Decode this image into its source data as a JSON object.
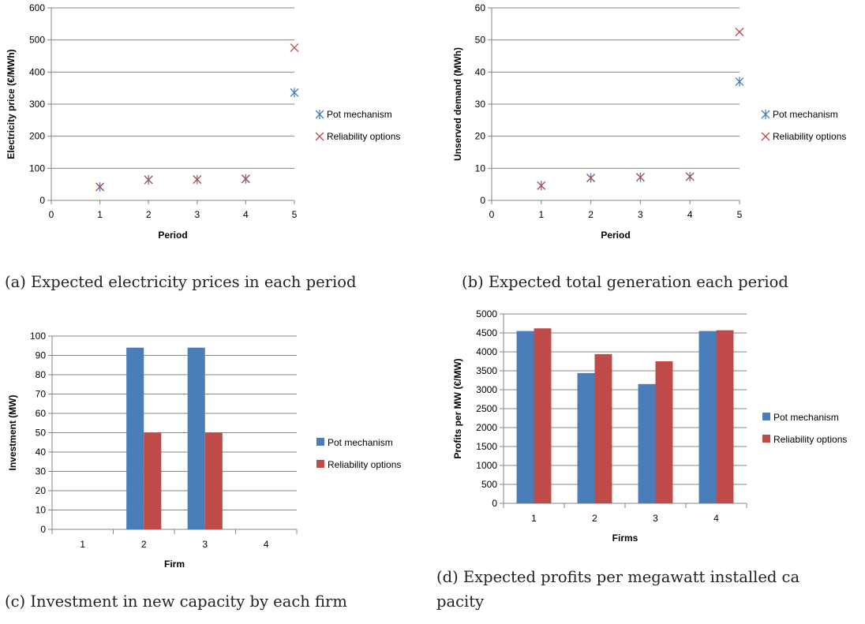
{
  "captions": {
    "a": "(a) Expected electricity prices in each period",
    "b": "(b) Expected total generation each period",
    "c": "(c) Investment in new capacity by each firm",
    "d_line1": "(d) Expected profits per megawatt installed ca",
    "d_line2": "pacity"
  },
  "colors": {
    "pot": "#4a7ebb",
    "ro": "#be4b48",
    "grid": "#868686",
    "axis": "#868686"
  },
  "chart_data": [
    {
      "id": "a",
      "type": "scatter",
      "xlabel": "Period",
      "ylabel": "Electricity price (€/MWh)",
      "xlim": [
        0,
        5
      ],
      "ylim": [
        0,
        600
      ],
      "xticks": [
        "0",
        "1",
        "2",
        "3",
        "4",
        "5"
      ],
      "yticks": [
        "0",
        "100",
        "200",
        "300",
        "400",
        "500",
        "600"
      ],
      "grid": true,
      "legend": "right",
      "series": [
        {
          "name": "Pot mechanism",
          "marker": "asterisk",
          "x": [
            1,
            2,
            3,
            4,
            5
          ],
          "y": [
            42,
            64,
            65,
            67,
            336
          ]
        },
        {
          "name": "Reliability options",
          "marker": "x",
          "x": [
            1,
            2,
            3,
            4,
            5
          ],
          "y": [
            42,
            64,
            65,
            67,
            476
          ]
        }
      ]
    },
    {
      "id": "b",
      "type": "scatter",
      "xlabel": "Period",
      "ylabel": "Unserved demand (MWh)",
      "xlim": [
        0,
        5
      ],
      "ylim": [
        0,
        60
      ],
      "xticks": [
        "0",
        "1",
        "2",
        "3",
        "4",
        "5"
      ],
      "yticks": [
        "0",
        "10",
        "20",
        "30",
        "40",
        "50",
        "60"
      ],
      "grid": true,
      "legend": "right",
      "series": [
        {
          "name": "Pot mechanism",
          "marker": "asterisk",
          "x": [
            1,
            2,
            3,
            4,
            5
          ],
          "y": [
            4.6,
            7.0,
            7.2,
            7.4,
            37
          ]
        },
        {
          "name": "Reliability options",
          "marker": "x",
          "x": [
            1,
            2,
            3,
            4,
            5
          ],
          "y": [
            4.6,
            7.0,
            7.2,
            7.4,
            52.5
          ]
        }
      ]
    },
    {
      "id": "c",
      "type": "bar",
      "xlabel": "Firm",
      "ylabel": "Investment (MW)",
      "categories": [
        "1",
        "2",
        "3",
        "4"
      ],
      "ylim": [
        0,
        100
      ],
      "yticks": [
        "0",
        "10",
        "20",
        "30",
        "40",
        "50",
        "60",
        "70",
        "80",
        "90",
        "100"
      ],
      "grid": true,
      "legend": "right",
      "series": [
        {
          "name": "Pot mechanism",
          "values": [
            0,
            94,
            94,
            0
          ]
        },
        {
          "name": "Reliability options",
          "values": [
            0,
            50,
            50,
            0
          ]
        }
      ]
    },
    {
      "id": "d",
      "type": "bar",
      "xlabel": "Firms",
      "ylabel": "Profits per MW (€/MW)",
      "categories": [
        "1",
        "2",
        "3",
        "4"
      ],
      "ylim": [
        0,
        5000
      ],
      "yticks": [
        "0",
        "500",
        "1000",
        "1500",
        "2000",
        "2500",
        "3000",
        "3500",
        "4000",
        "4500",
        "5000"
      ],
      "grid": true,
      "legend": "right",
      "series": [
        {
          "name": "Pot mechanism",
          "values": [
            4550,
            3440,
            3150,
            4550
          ]
        },
        {
          "name": "Reliability options",
          "values": [
            4620,
            3940,
            3750,
            4570
          ]
        }
      ]
    }
  ]
}
